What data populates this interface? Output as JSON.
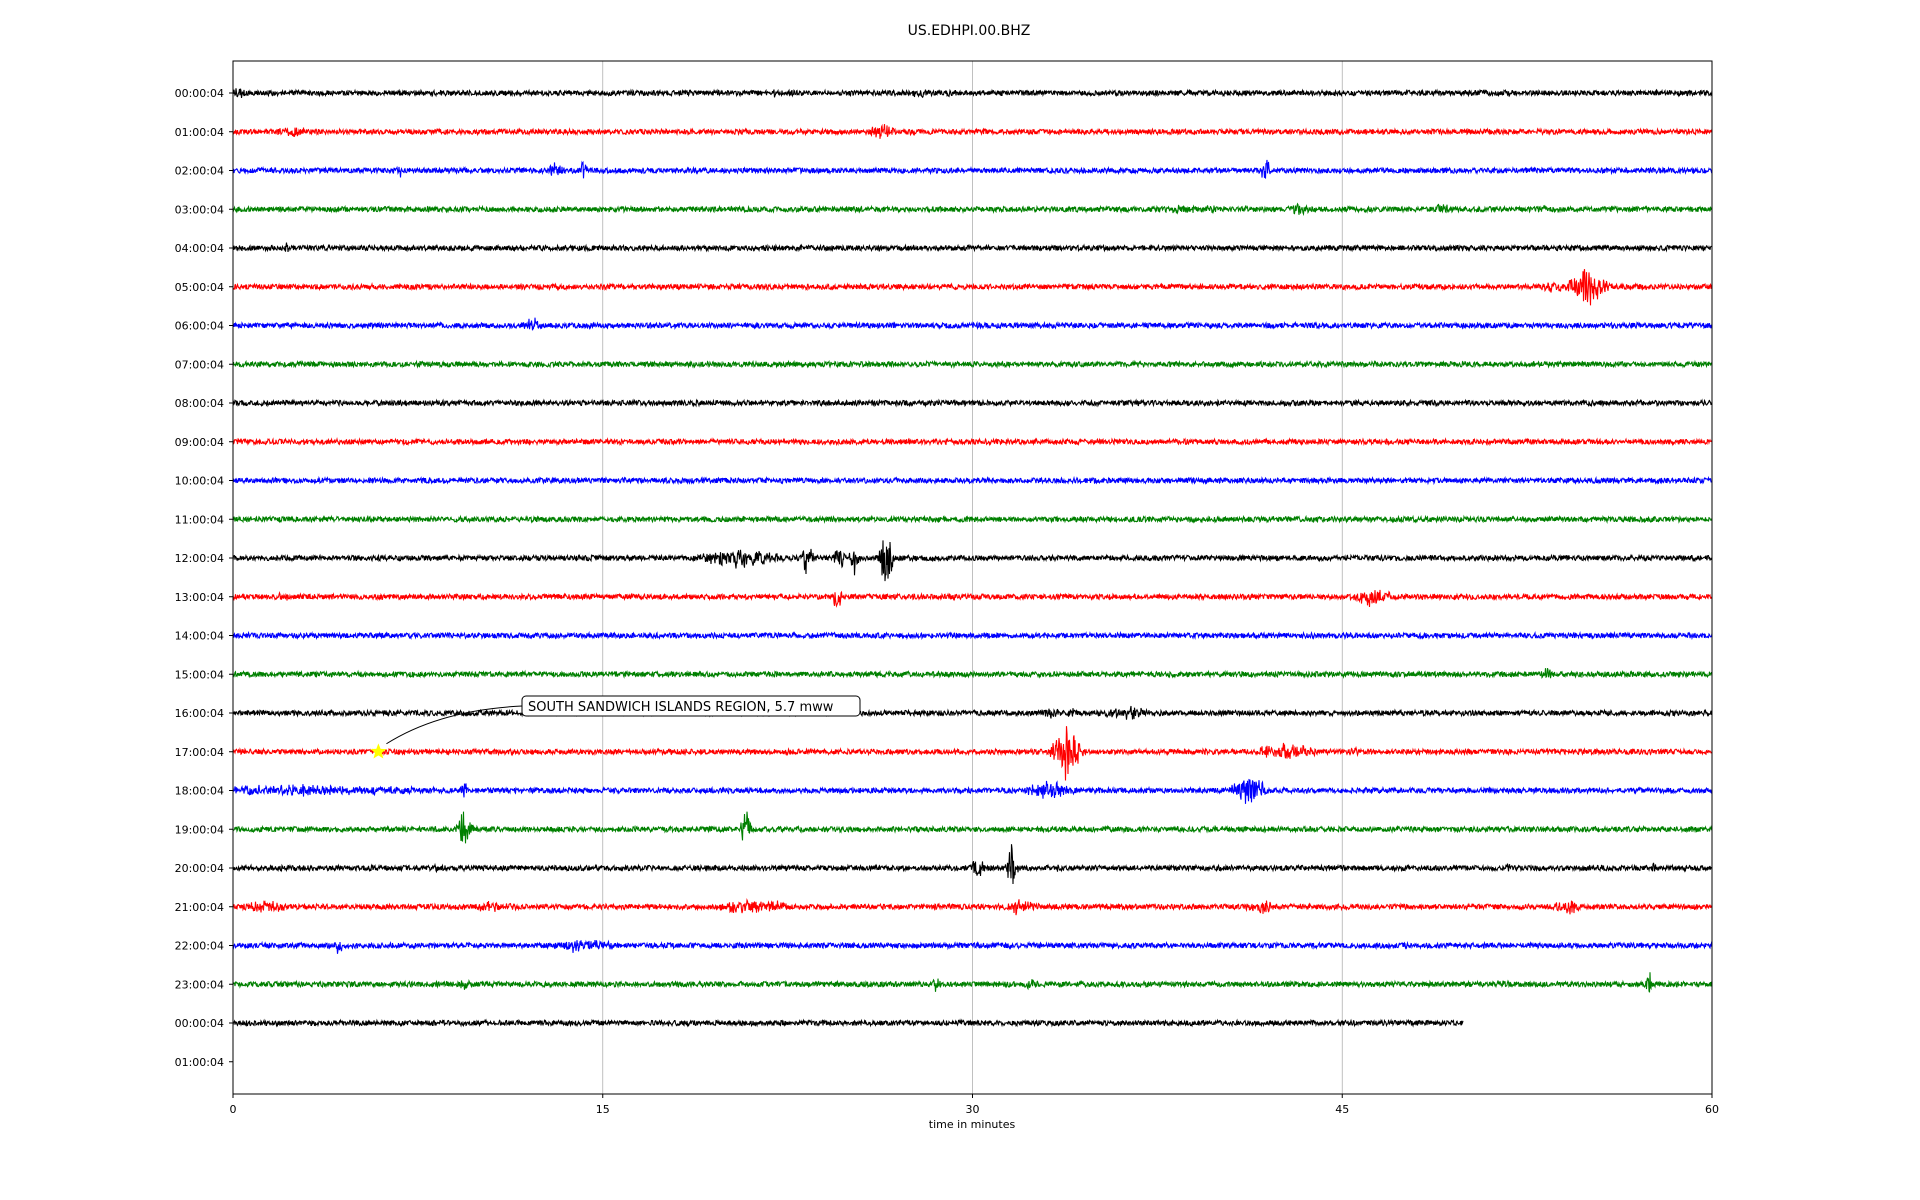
{
  "chart_data": {
    "type": "line",
    "title": "US.EDHPI.00.BHZ",
    "xlabel": "time in minutes",
    "ylabel": "",
    "xlim": [
      0,
      60
    ],
    "x_ticks": [
      "0",
      "15",
      "30",
      "45",
      "60"
    ],
    "x_tick_values": [
      0,
      15,
      30,
      45,
      60
    ],
    "grid": "vertical lines at x ticks",
    "colors": {
      "cycle": [
        "#000000",
        "#ff0000",
        "#0000ff",
        "#008000"
      ],
      "axes": "#000000",
      "grid": "#b0b0b0",
      "marker": "#ffff00"
    },
    "row_labels": [
      "00:00:04",
      "01:00:04",
      "02:00:04",
      "03:00:04",
      "04:00:04",
      "05:00:04",
      "06:00:04",
      "07:00:04",
      "08:00:04",
      "09:00:04",
      "10:00:04",
      "11:00:04",
      "12:00:04",
      "13:00:04",
      "14:00:04",
      "15:00:04",
      "16:00:04",
      "17:00:04",
      "18:00:04",
      "19:00:04",
      "20:00:04",
      "21:00:04",
      "22:00:04",
      "23:00:04",
      "00:00:04",
      "01:00:04"
    ],
    "series": [
      {
        "row": 0,
        "end": 60,
        "noise": 2.6,
        "bursts": [
          [
            0.3,
            0.6,
            8
          ],
          [
            21.9,
            0.3,
            6
          ],
          [
            27.9,
            0.8,
            6
          ],
          [
            29,
            0.3,
            5
          ],
          [
            51,
            0.3,
            5
          ]
        ]
      },
      {
        "row": 1,
        "end": 60,
        "noise": 2.6,
        "bursts": [
          [
            2.5,
            1.5,
            7
          ],
          [
            17.6,
            0.3,
            5
          ],
          [
            26.3,
            0.9,
            11
          ],
          [
            27.5,
            0.3,
            5
          ]
        ]
      },
      {
        "row": 2,
        "end": 60,
        "noise": 2.6,
        "bursts": [
          [
            6.8,
            0.4,
            8
          ],
          [
            13.1,
            0.5,
            11
          ],
          [
            14.2,
            0.3,
            14
          ],
          [
            41.9,
            0.4,
            14
          ]
        ]
      },
      {
        "row": 3,
        "end": 60,
        "noise": 2.6,
        "bursts": [
          [
            38.9,
            3,
            6
          ],
          [
            41,
            0.3,
            7
          ],
          [
            43.2,
            0.7,
            8
          ],
          [
            49,
            0.8,
            7
          ],
          [
            53.2,
            0.3,
            5
          ]
        ]
      },
      {
        "row": 4,
        "end": 60,
        "noise": 2.6,
        "bursts": [
          [
            2.2,
            0.3,
            8
          ],
          [
            18.9,
            0.3,
            4
          ]
        ]
      },
      {
        "row": 5,
        "end": 60,
        "noise": 2.6,
        "bursts": [
          [
            53.5,
            0.8,
            9
          ],
          [
            55,
            1.2,
            24
          ]
        ]
      },
      {
        "row": 6,
        "end": 60,
        "noise": 2.6,
        "bursts": [
          [
            12.1,
            0.6,
            12
          ]
        ]
      },
      {
        "row": 7,
        "end": 60,
        "noise": 2.6,
        "bursts": []
      },
      {
        "row": 8,
        "end": 60,
        "noise": 2.6,
        "bursts": [
          [
            7.5,
            0.2,
            4
          ]
        ]
      },
      {
        "row": 9,
        "end": 60,
        "noise": 2.6,
        "bursts": []
      },
      {
        "row": 10,
        "end": 60,
        "noise": 2.6,
        "bursts": [
          [
            6.4,
            0.2,
            4
          ]
        ]
      },
      {
        "row": 11,
        "end": 60,
        "noise": 2.6,
        "bursts": []
      },
      {
        "row": 12,
        "end": 60,
        "noise": 2.6,
        "bursts": [
          [
            20.6,
            2.5,
            12
          ],
          [
            23.3,
            0.3,
            28
          ],
          [
            24.6,
            0.3,
            26
          ],
          [
            25.2,
            0.3,
            20
          ],
          [
            26.5,
            0.4,
            38
          ]
        ]
      },
      {
        "row": 13,
        "end": 60,
        "noise": 2.6,
        "bursts": [
          [
            2,
            0.4,
            8
          ],
          [
            24.5,
            0.3,
            20
          ],
          [
            46.2,
            1.3,
            12
          ],
          [
            48.7,
            0.3,
            5
          ]
        ]
      },
      {
        "row": 14,
        "end": 60,
        "noise": 2.6,
        "bursts": [
          [
            24.5,
            0.3,
            5
          ]
        ]
      },
      {
        "row": 15,
        "end": 60,
        "noise": 2.6,
        "bursts": [
          [
            53.3,
            0.4,
            9
          ]
        ]
      },
      {
        "row": 16,
        "end": 60,
        "noise": 2.6,
        "bursts": [
          [
            33.2,
            0.5,
            9
          ],
          [
            34,
            0.3,
            8
          ],
          [
            36.3,
            1.8,
            9
          ]
        ]
      },
      {
        "row": 17,
        "end": 60,
        "noise": 2.6,
        "bursts": [
          [
            33.8,
            0.8,
            36
          ],
          [
            42.7,
            2,
            12
          ],
          [
            45.5,
            0.6,
            6
          ],
          [
            49.5,
            0.3,
            5
          ]
        ]
      },
      {
        "row": 18,
        "end": 60,
        "noise": 2.6,
        "bursts": [
          [
            2.8,
            11,
            7
          ],
          [
            9.4,
            0.3,
            16
          ],
          [
            33.1,
            1.5,
            12
          ],
          [
            41.2,
            1,
            20
          ]
        ]
      },
      {
        "row": 19,
        "end": 60,
        "noise": 2.6,
        "bursts": [
          [
            9.4,
            0.4,
            28
          ],
          [
            20.8,
            0.3,
            24
          ]
        ]
      },
      {
        "row": 20,
        "end": 60,
        "noise": 2.6,
        "bursts": [
          [
            8.2,
            0.2,
            8
          ],
          [
            30.2,
            0.5,
            14
          ],
          [
            31.6,
            0.3,
            30
          ],
          [
            33.5,
            0.3,
            6
          ],
          [
            51.7,
            0.7,
            6
          ],
          [
            57.7,
            0.5,
            7
          ]
        ]
      },
      {
        "row": 21,
        "end": 60,
        "noise": 2.6,
        "bursts": [
          [
            1.3,
            1.5,
            9
          ],
          [
            10.5,
            2,
            7
          ],
          [
            21.2,
            2.5,
            10
          ],
          [
            31.8,
            1.3,
            10
          ],
          [
            41.8,
            1.2,
            9
          ],
          [
            54.2,
            1,
            10
          ]
        ]
      },
      {
        "row": 22,
        "end": 60,
        "noise": 2.6,
        "bursts": [
          [
            4.3,
            0.3,
            12
          ],
          [
            14.2,
            2,
            10
          ]
        ]
      },
      {
        "row": 23,
        "end": 60,
        "noise": 2.6,
        "bursts": [
          [
            9.4,
            0.3,
            10
          ],
          [
            28.5,
            0.3,
            12
          ],
          [
            32.4,
            0.5,
            8
          ],
          [
            51.5,
            1,
            6
          ],
          [
            57.4,
            0.3,
            18
          ]
        ]
      },
      {
        "row": 24,
        "end": 49.9,
        "noise": 2.6,
        "bursts": []
      }
    ],
    "annotation": {
      "text": "SOUTH SANDWICH ISLANDS REGION, 5.7 mww",
      "x": 5.9,
      "row": 17
    }
  }
}
